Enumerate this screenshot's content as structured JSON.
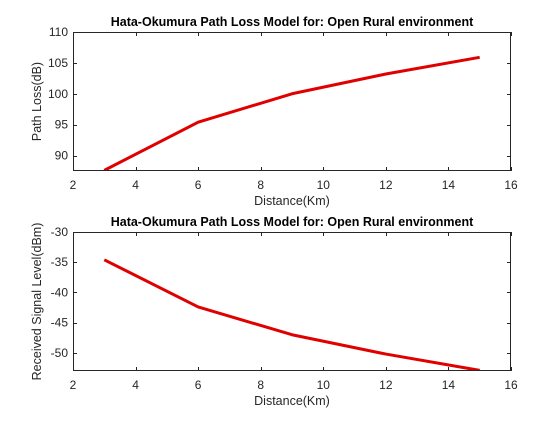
{
  "chart_data": [
    {
      "type": "line",
      "title": "Hata-Okumura Path Loss Model for: Open Rural environment",
      "xlabel": "Distance(Km)",
      "ylabel": "Path Loss(dB)",
      "xlim": [
        2,
        16
      ],
      "ylim": [
        87.5,
        110
      ],
      "xticks": [
        2,
        4,
        6,
        8,
        10,
        12,
        14,
        16
      ],
      "yticks": [
        90,
        95,
        100,
        105,
        110
      ],
      "grid": false,
      "series": [
        {
          "color": "#e00000",
          "x": [
            3,
            6,
            9,
            12,
            15
          ],
          "y": [
            87.6,
            95.4,
            100.0,
            103.2,
            105.9
          ]
        }
      ]
    },
    {
      "type": "line",
      "title": "Hata-Okumura Path Loss Model for: Open Rural environment",
      "xlabel": "Distance(Km)",
      "ylabel": "Received Signal Level(dBm)",
      "xlim": [
        2,
        16
      ],
      "ylim": [
        -53,
        -30
      ],
      "xticks": [
        2,
        4,
        6,
        8,
        10,
        12,
        14,
        16
      ],
      "yticks": [
        -50,
        -45,
        -40,
        -35,
        -30
      ],
      "grid": false,
      "series": [
        {
          "color": "#e00000",
          "x": [
            3,
            6,
            9,
            12,
            15
          ],
          "y": [
            -34.6,
            -42.4,
            -47.0,
            -50.2,
            -52.9
          ]
        }
      ]
    }
  ]
}
